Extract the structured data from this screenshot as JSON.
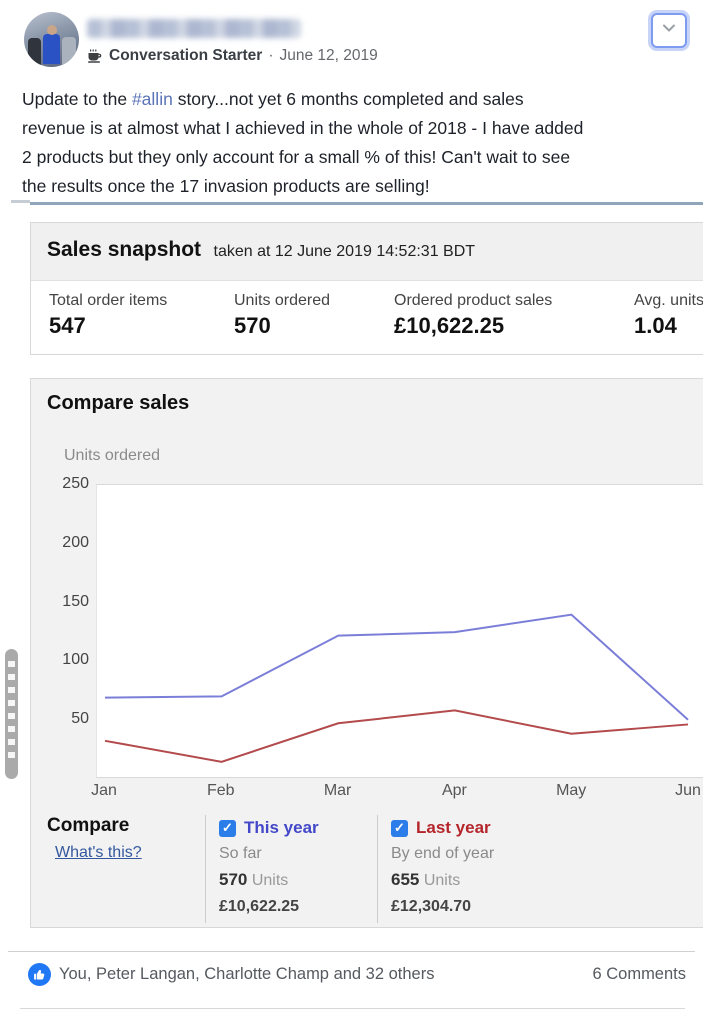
{
  "colors": {
    "hashtag": "#5b74b8",
    "checkbox": "#2b7de9",
    "like_badge": "#2078f4",
    "top_line": "#8fa5ba"
  },
  "header": {
    "badge": "Conversation Starter",
    "separator": "·",
    "date": "June 12, 2019"
  },
  "post": {
    "line1_before": "Update to the ",
    "hashtag": "#allin",
    "line1_after": " story...not yet 6 months completed and sales",
    "line2": "revenue is at almost what I achieved in the whole of 2018 - I have added",
    "line3": "2 products but they only account for a small % of this! Can't wait to see",
    "line4": "the results once the 17 invasion products are selling!"
  },
  "snapshot": {
    "title": "Sales snapshot",
    "subtitle": "taken at 12 June 2019 14:52:31 BDT",
    "stats": [
      {
        "label": "Total order items",
        "value": "547"
      },
      {
        "label": "Units ordered",
        "value": "570"
      },
      {
        "label": "Ordered product sales",
        "value": "£10,622.25"
      },
      {
        "label": "Avg. units",
        "value": "1.04"
      }
    ]
  },
  "compare": {
    "title": "Compare sales",
    "axis_label": "Units ordered",
    "compare_word": "Compare",
    "whats_this": "What's this?",
    "checkmark": "✓",
    "legend": [
      {
        "label": "This year",
        "sub": "So far",
        "units": "570",
        "units_word": "Units",
        "amount": "£10,622.25",
        "color": "#4348c8"
      },
      {
        "label": "Last year",
        "sub": "By end of year",
        "units": "655",
        "units_word": "Units",
        "amount": "£12,304.70",
        "color": "#b5262b"
      }
    ]
  },
  "chart_data": {
    "type": "line",
    "title": "Compare sales",
    "ylabel": "Units ordered",
    "categories": [
      "Jan",
      "Feb",
      "Mar",
      "Apr",
      "May",
      "Jun"
    ],
    "series": [
      {
        "name": "This year",
        "values": [
          68,
          69,
          121,
          124,
          139,
          49
        ],
        "color": "#7b7ed8"
      },
      {
        "name": "Last year",
        "values": [
          31,
          13,
          46,
          57,
          37,
          45
        ],
        "color": "#b34a4c"
      }
    ],
    "ylim": [
      0,
      250
    ],
    "yticks": [
      50,
      100,
      150,
      200,
      250
    ],
    "grid": false,
    "legend_position": "bottom"
  },
  "footer": {
    "likes": "You, Peter Langan, Charlotte Champ and 32 others",
    "comments": "6 Comments"
  }
}
